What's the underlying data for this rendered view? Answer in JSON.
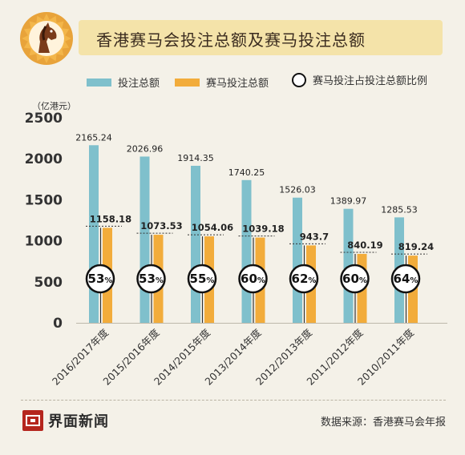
{
  "title": "香港赛马会投注总额及赛马投注总额",
  "legend": {
    "total_label": "投注总额",
    "racing_label": "赛马投注总额",
    "ratio_label": "赛马投注占投注总额比例"
  },
  "colors": {
    "total": "#7fc0cc",
    "racing": "#f2ac3b",
    "background": "#f4f1e8",
    "title_bar": "#f4e3a9"
  },
  "footer": {
    "brand": "界面新闻",
    "source": "数据来源：香港赛马会年报"
  },
  "chart_data": {
    "type": "bar",
    "yunit": "（亿港元）",
    "ylim": [
      0,
      2500
    ],
    "yticks": [
      0,
      500,
      1000,
      1500,
      2000,
      2500
    ],
    "categories": [
      "2016/2017年度",
      "2015/2016年度",
      "2014/2015年度",
      "2013/2014年度",
      "2012/2013年度",
      "2011/2012年度",
      "2010/2011年度"
    ],
    "series": [
      {
        "name": "投注总额",
        "values": [
          2165.24,
          2026.96,
          1914.35,
          1740.25,
          1526.03,
          1389.97,
          1285.53
        ],
        "labels": [
          "2165.24",
          "2026.96",
          "1914.35",
          "1740.25",
          "1526.03",
          "1389.97",
          "1285.53"
        ]
      },
      {
        "name": "赛马投注总额",
        "values": [
          1158.18,
          1073.53,
          1054.06,
          1039.18,
          943.7,
          840.19,
          819.24
        ],
        "labels": [
          "1158.18",
          "1073.53",
          "1054.06",
          "1039.18",
          "943.7",
          "840.19",
          "819.24"
        ]
      }
    ],
    "ratio": {
      "name": "赛马投注占投注总额比例",
      "values": [
        53,
        53,
        55,
        60,
        62,
        60,
        64
      ],
      "suffix": "%"
    }
  }
}
